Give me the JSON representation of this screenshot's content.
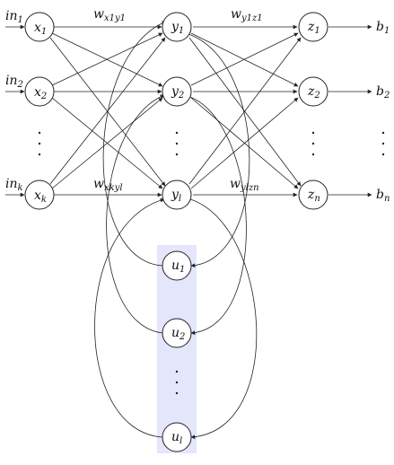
{
  "inputs": {
    "x1": {
      "label": "in",
      "sub": "1"
    },
    "x2": {
      "label": "in",
      "sub": "2"
    },
    "xk": {
      "label": "in",
      "sub": "k"
    }
  },
  "outputs": {
    "z1": {
      "label": "b",
      "sub": "1"
    },
    "z2": {
      "label": "b",
      "sub": "2"
    },
    "zn": {
      "label": "b",
      "sub": "n"
    }
  },
  "nodes": {
    "x1": {
      "label": "x",
      "sub": "1"
    },
    "x2": {
      "label": "x",
      "sub": "2"
    },
    "xk": {
      "label": "x",
      "sub": "k"
    },
    "y1": {
      "label": "y",
      "sub": "1"
    },
    "y2": {
      "label": "y",
      "sub": "2"
    },
    "yl": {
      "label": "y",
      "sub": "l"
    },
    "z1": {
      "label": "z",
      "sub": "1"
    },
    "z2": {
      "label": "z",
      "sub": "2"
    },
    "zn": {
      "label": "z",
      "sub": "n"
    },
    "u1": {
      "label": "u",
      "sub": "1"
    },
    "u2": {
      "label": "u",
      "sub": "2"
    },
    "ul": {
      "label": "u",
      "sub": "l"
    }
  },
  "weights": {
    "w_x1y1": {
      "label": "w",
      "sub": "x1y1"
    },
    "w_y1z1": {
      "label": "w",
      "sub": "y1z1"
    },
    "w_xkyl": {
      "label": "w",
      "sub": "xkyl"
    },
    "w_ylzn": {
      "label": "w",
      "sub": "ylzn"
    }
  },
  "colors": {
    "highlight_band": "#e4e6fb",
    "stroke": "#222222"
  }
}
